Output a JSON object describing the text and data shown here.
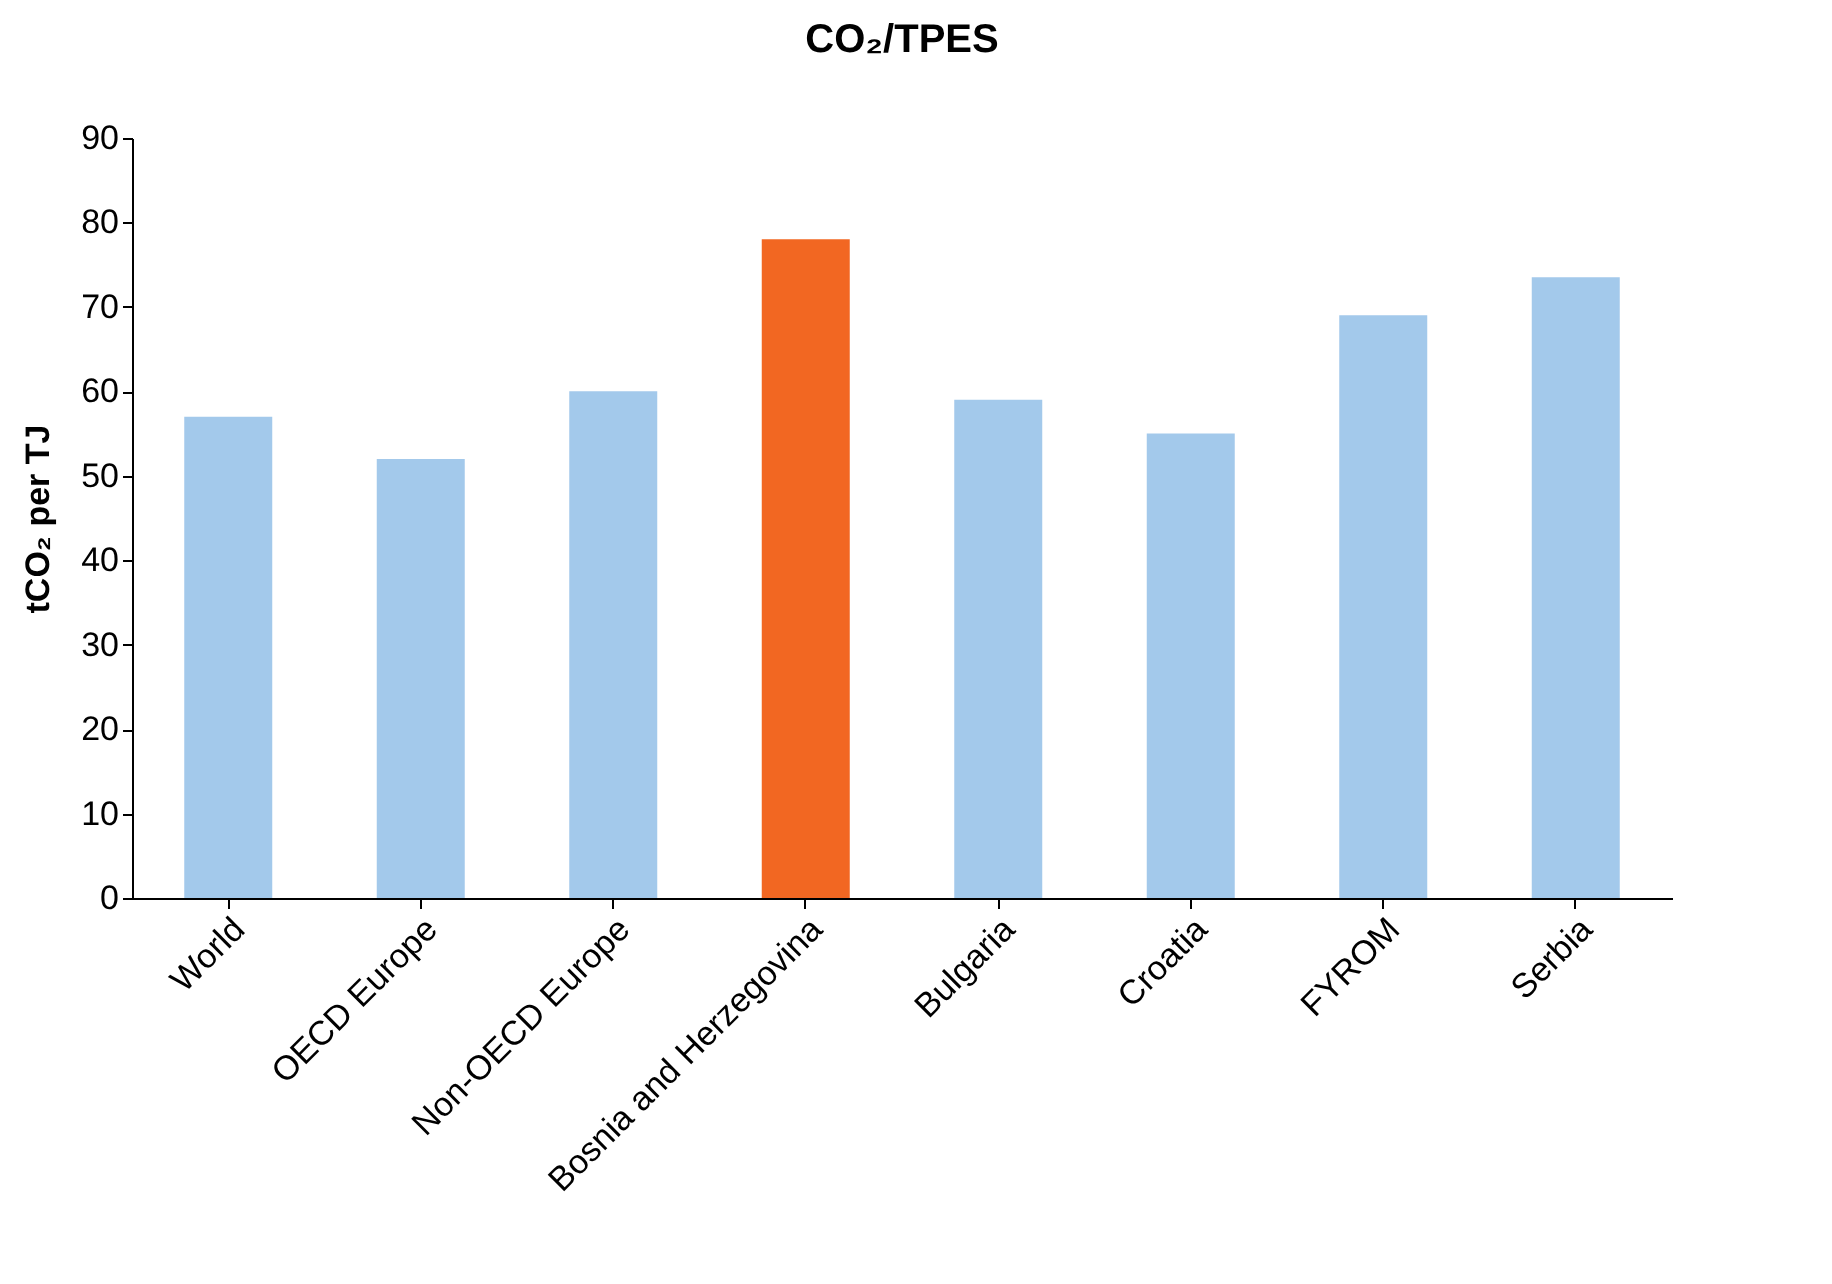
{
  "chart_data": {
    "type": "bar",
    "title": "CO₂/TPES",
    "ylabel": "tCO₂ per TJ",
    "categories": [
      "World",
      "OECD Europe",
      "Non-OECD Europe",
      "Bosnia and Herzegovina",
      "Bulgaria",
      "Croatia",
      "FYROM",
      "Serbia"
    ],
    "values": [
      57,
      52,
      60,
      78,
      59,
      55,
      69,
      73.5
    ],
    "colors": [
      "#a3c9eb",
      "#a3c9eb",
      "#a3c9eb",
      "#f26722",
      "#a3c9eb",
      "#a3c9eb",
      "#a3c9eb",
      "#a3c9eb"
    ],
    "ylim": [
      0,
      90
    ],
    "yticks": [
      0,
      10,
      20,
      30,
      40,
      50,
      60,
      70,
      80,
      90
    ],
    "grid": false
  }
}
